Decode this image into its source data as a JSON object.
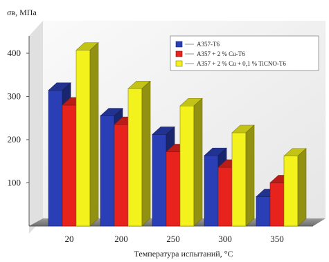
{
  "chart_data": {
    "type": "bar",
    "style": "3d-clustered",
    "ylabel": "σв, МПа",
    "xlabel": "Температура испытаний, °С",
    "categories": [
      "20",
      "200",
      "250",
      "300",
      "350"
    ],
    "ylim": [
      0,
      440
    ],
    "yticks": [
      100,
      200,
      300,
      400
    ],
    "grid": false,
    "legend_position": "top-right",
    "series": [
      {
        "name": "A357-T6",
        "color": "#2a3fb5",
        "values": [
          314,
          255,
          212,
          163,
          68
        ]
      },
      {
        "name": "A357 + 2 % Cu-T6",
        "color": "#e8231e",
        "values": [
          280,
          235,
          172,
          136,
          100
        ]
      },
      {
        "name": "A357 + 2 % Cu + 0,1 % TiCNO-T6",
        "color": "#f4f21c",
        "values": [
          407,
          318,
          278,
          216,
          162
        ]
      }
    ]
  }
}
